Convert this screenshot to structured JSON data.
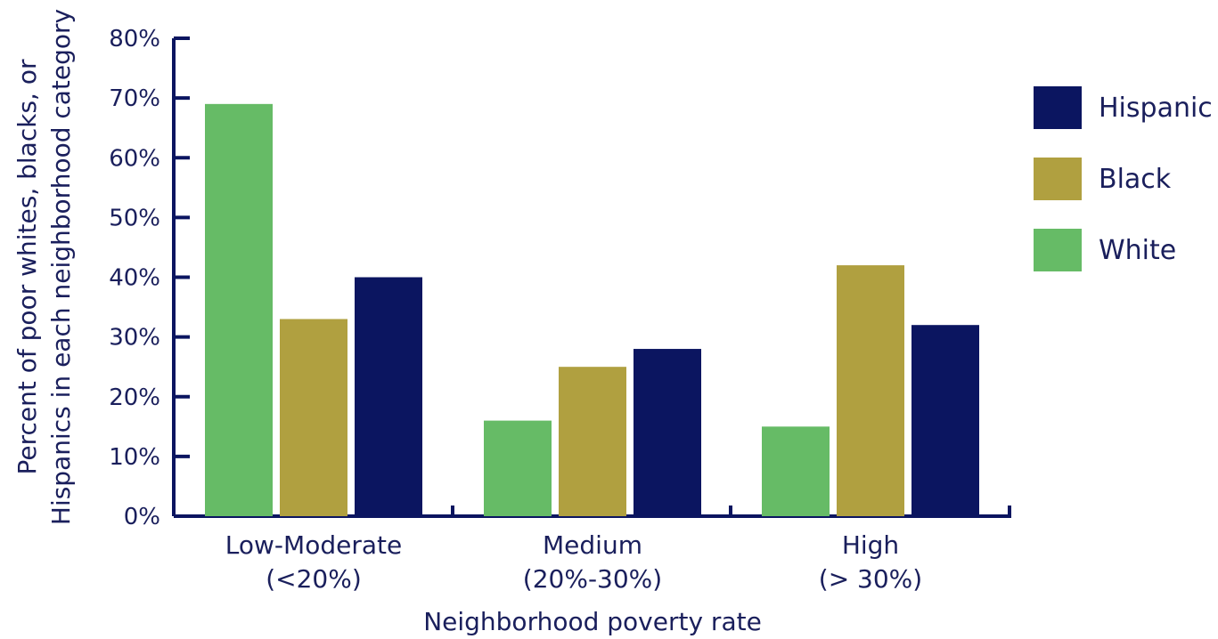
{
  "chart_data": {
    "type": "bar",
    "xlabel": "Neighborhood poverty rate",
    "ylabel_lines": [
      "Percent of poor whites, blacks, or",
      "Hispanics in each neighborhood category"
    ],
    "categories": [
      [
        "Low-Moderate",
        "(<20%)"
      ],
      [
        "Medium",
        "(20%-30%)"
      ],
      [
        "High",
        "(> 30%)"
      ]
    ],
    "yticks": [
      "0%",
      "10%",
      "20%",
      "30%",
      "40%",
      "50%",
      "60%",
      "70%",
      "80%"
    ],
    "ylim": [
      0,
      80
    ],
    "series": [
      {
        "name": "White",
        "color": "#66bb66",
        "values": [
          69,
          16,
          15
        ]
      },
      {
        "name": "Black",
        "color": "#b0a040",
        "values": [
          33,
          25,
          42
        ]
      },
      {
        "name": "Hispanic",
        "color": "#0b1560",
        "values": [
          40,
          28,
          32
        ]
      }
    ],
    "legend": {
      "placement": "right",
      "order": [
        "Hispanic",
        "Black",
        "White"
      ]
    },
    "axis_color": "#0b1560",
    "grid": false
  }
}
